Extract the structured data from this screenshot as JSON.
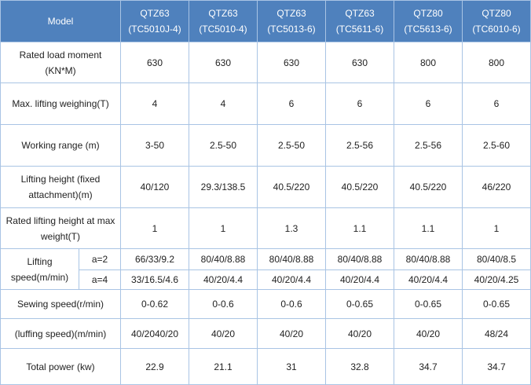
{
  "header": {
    "model_label": "Model",
    "models": [
      {
        "name": "QTZ63",
        "code": "(TC5010J-4)"
      },
      {
        "name": "QTZ63",
        "code": "(TC5010-4)"
      },
      {
        "name": "QTZ63",
        "code": "(TC5013-6)"
      },
      {
        "name": "QTZ63",
        "code": "(TC5611-6)"
      },
      {
        "name": "QTZ80",
        "code": "(TC5613-6)"
      },
      {
        "name": "QTZ80",
        "code": "(TC6010-6)"
      }
    ]
  },
  "rows": {
    "rated_load_moment": {
      "label_line1": "Rated load moment",
      "label_line2": "(KN*M)",
      "values": [
        "630",
        "630",
        "630",
        "630",
        "800",
        "800"
      ]
    },
    "max_lifting": {
      "label": "Max. lifting weighing(T)",
      "values": [
        "4",
        "4",
        "6",
        "6",
        "6",
        "6"
      ]
    },
    "working_range": {
      "label": "Working range (m)",
      "values": [
        "3-50",
        "2.5-50",
        "2.5-50",
        "2.5-56",
        "2.5-56",
        "2.5-60"
      ]
    },
    "lifting_height": {
      "label_line1": "Lifting height (fixed",
      "label_line2": "attachment)(m)",
      "values": [
        "40/120",
        "29.3/138.5",
        "40.5/220",
        "40.5/220",
        "40.5/220",
        "46/220"
      ]
    },
    "rated_lifting_height": {
      "label_line1": "Rated lifting height at max",
      "label_line2": "weight(T)",
      "values": [
        "1",
        "1",
        "1.3",
        "1.1",
        "1.1",
        "1"
      ]
    },
    "lifting_speed": {
      "label_line1": "Lifting",
      "label_line2": "speed(m/min)",
      "a2_label": "a=2",
      "a2_values": [
        "66/33/9.2",
        "80/40/8.88",
        "80/40/8.88",
        "80/40/8.88",
        "80/40/8.88",
        "80/40/8.5"
      ],
      "a4_label": "a=4",
      "a4_values": [
        "33/16.5/4.6",
        "40/20/4.4",
        "40/20/4.4",
        "40/20/4.4",
        "40/20/4.4",
        "40/20/4.25"
      ]
    },
    "sewing_speed": {
      "label": "Sewing speed(r/min)",
      "values": [
        "0-0.62",
        "0-0.6",
        "0-0.6",
        "0-0.65",
        "0-0.65",
        "0-0.65"
      ]
    },
    "luffing_speed": {
      "label": "(luffing speed)(m/min)",
      "values": [
        "40/2040/20",
        "40/20",
        "40/20",
        "40/20",
        "40/20",
        "48/24"
      ]
    },
    "total_power": {
      "label": "Total power (kw)",
      "values": [
        "22.9",
        "21.1",
        "31",
        "32.8",
        "34.7",
        "34.7"
      ]
    }
  }
}
